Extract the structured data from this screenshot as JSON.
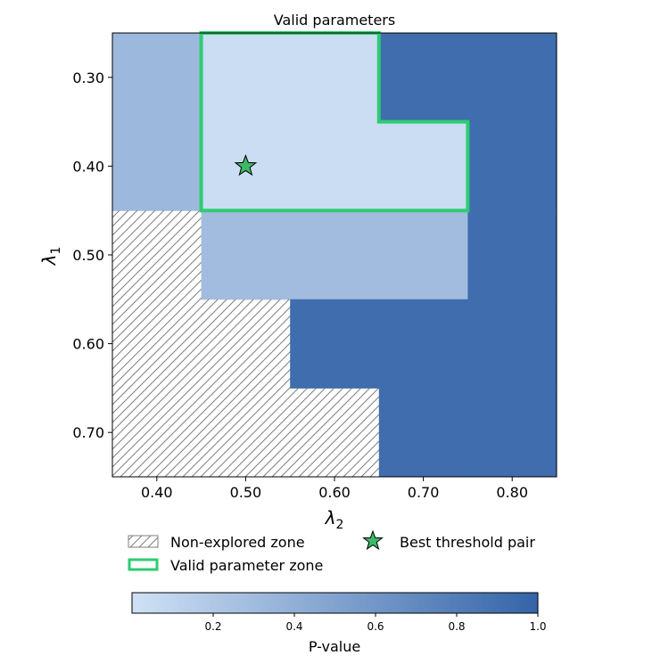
{
  "chart_data": {
    "type": "heatmap",
    "title": "Valid parameters",
    "xlabel": "λ",
    "xlabel_sub": "2",
    "ylabel": "λ",
    "ylabel_sub": "1",
    "x_categories": [
      0.4,
      0.5,
      0.6,
      0.7,
      0.8
    ],
    "y_categories": [
      0.3,
      0.4,
      0.5,
      0.6,
      0.7
    ],
    "x_tick_labels": [
      "0.40",
      "0.50",
      "0.60",
      "0.70",
      "0.80"
    ],
    "y_tick_labels": [
      "0.30",
      "0.40",
      "0.50",
      "0.60",
      "0.70"
    ],
    "xlim": [
      0.35,
      0.85
    ],
    "ylim": [
      0.25,
      0.75
    ],
    "y_inverted": true,
    "p_values": [
      [
        0.33,
        0.03,
        0.03,
        0.93,
        0.93
      ],
      [
        0.33,
        0.03,
        0.03,
        0.03,
        0.93
      ],
      [
        null,
        0.3,
        0.3,
        0.3,
        0.93
      ],
      [
        null,
        null,
        0.93,
        0.93,
        0.93
      ],
      [
        null,
        null,
        null,
        0.93,
        0.93
      ]
    ],
    "valid_zone": [
      [
        0,
        1
      ],
      [
        0,
        2
      ],
      [
        1,
        1
      ],
      [
        1,
        2
      ],
      [
        1,
        3
      ]
    ],
    "best_pair": {
      "lambda1": 0.4,
      "lambda2": 0.5
    },
    "colorbar": {
      "label": "P-value",
      "ticks": [
        0.2,
        0.4,
        0.6,
        0.8,
        1.0
      ],
      "tick_labels": [
        "0.2",
        "0.4",
        "0.6",
        "0.8",
        "1.0"
      ],
      "range": [
        0.0,
        1.0
      ],
      "color_low": "#cfe1f5",
      "color_high": "#3464a8"
    },
    "legend": {
      "placement": "below",
      "items": [
        {
          "label": "Non-explored zone",
          "marker": "hatch"
        },
        {
          "label": "Valid parameter zone",
          "marker": "green-outline"
        },
        {
          "label": "Best threshold pair",
          "marker": "star"
        }
      ]
    },
    "colors": {
      "valid_outline": "#2ecc71",
      "star_fill": "#3cb968",
      "hatch": "#7f7f7f"
    }
  }
}
